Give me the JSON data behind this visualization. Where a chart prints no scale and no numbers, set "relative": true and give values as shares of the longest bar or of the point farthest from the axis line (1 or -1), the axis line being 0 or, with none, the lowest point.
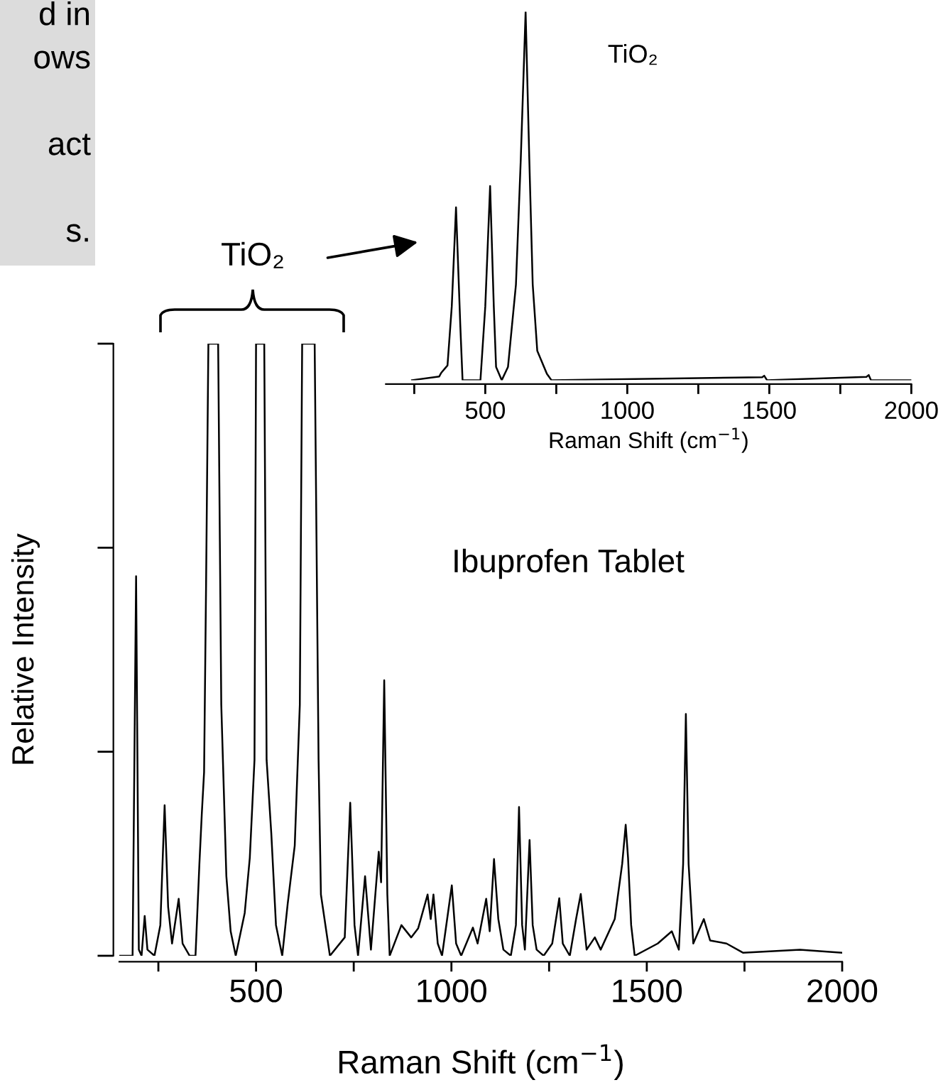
{
  "chart_data": [
    {
      "type": "line",
      "relative": true,
      "xlabel": "Raman Shift (cm$^{−1}$)",
      "ylabel": "Relative Intensity",
      "xlim": [
        150,
        2000
      ],
      "xticks": [
        {
          "value": 250,
          "label": null
        },
        500,
        {
          "value": 750,
          "label": null
        },
        1000,
        {
          "value": 1250,
          "label": null
        },
        1500,
        {
          "value": 1750,
          "label": null
        },
        2000
      ],
      "annotations": [
        "d in\nows\n\nact\n\ns.",
        "TiO₂",
        "Ibuprofen Tablet"
      ],
      "grid": false,
      "legend": false,
      "marker": "none",
      "line_style": "solid",
      "series": [
        {
          "color": "#000000",
          "x": [
            150,
            184,
            193,
            200,
            207,
            215,
            222,
            240,
            255,
            266,
            275,
            285,
            302,
            312,
            330,
            345,
            355,
            361,
            367,
            372,
            378,
            403,
            411,
            424,
            435,
            448,
            471,
            484,
            496,
            500,
            521,
            527,
            539,
            551,
            567,
            581,
            599,
            612,
            618,
            650,
            660,
            666,
            689,
            727,
            741,
            752,
            761,
            779,
            794,
            814,
            820,
            828,
            836,
            842,
            872,
            897,
            915,
            939,
            947,
            954,
            965,
            976,
            1001,
            1012,
            1025,
            1055,
            1067,
            1089,
            1098,
            1109,
            1120,
            1133,
            1152,
            1165,
            1173,
            1181,
            1188,
            1200,
            1208,
            1218,
            1236,
            1258,
            1276,
            1285,
            1303,
            1319,
            1331,
            1346,
            1367,
            1382,
            1418,
            1437,
            1446,
            1452,
            1460,
            1469,
            1528,
            1564,
            1582,
            1593,
            1600,
            1607,
            1619,
            1646,
            1662,
            1704,
            1746,
            1892,
            2000
          ],
          "values": [
            0,
            0,
            0.62,
            0.01,
            0,
            0.065,
            0.01,
            0,
            0.05,
            0.246,
            0.08,
            0.02,
            0.093,
            0.02,
            0,
            0,
            0.15,
            0.23,
            0.3,
            0.6,
            1,
            1,
            0.41,
            0.13,
            0.04,
            0,
            0.07,
            0.16,
            0.32,
            1,
            1,
            0.32,
            0.2,
            0.05,
            0,
            0.085,
            0.18,
            0.41,
            1,
            1,
            0.32,
            0.1,
            0,
            0.03,
            0.25,
            0.05,
            0,
            0.13,
            0.01,
            0.17,
            0.12,
            0.45,
            0.1,
            0,
            0.05,
            0.03,
            0.045,
            0.1,
            0.06,
            0.1,
            0.02,
            0,
            0.115,
            0.02,
            0,
            0.046,
            0.02,
            0.093,
            0.04,
            0.158,
            0.06,
            0.01,
            0,
            0.05,
            0.243,
            0.05,
            0.01,
            0.189,
            0.05,
            0.01,
            0,
            0.02,
            0.094,
            0.02,
            0,
            0.06,
            0.101,
            0.01,
            0.03,
            0.01,
            0.06,
            0.15,
            0.214,
            0.16,
            0.05,
            0,
            0.02,
            0.04,
            0.01,
            0.15,
            0.395,
            0.15,
            0.02,
            0.06,
            0.025,
            0.02,
            0.005,
            0.01,
            0.005
          ]
        }
      ]
    },
    {
      "type": "line",
      "relative": true,
      "xlabel": "Raman Shift (cm$^{−1}$)",
      "xlim": [
        150,
        2000
      ],
      "xticks": [
        {
          "value": 250,
          "label": null
        },
        500,
        {
          "value": 750,
          "label": null
        },
        1000,
        {
          "value": 1250,
          "label": null
        },
        1500,
        {
          "value": 1750,
          "label": null
        },
        2000
      ],
      "annotations": [
        "TiO₂"
      ],
      "grid": false,
      "legend": false,
      "marker": "none",
      "line_style": "solid",
      "series": [
        {
          "color": "#000000",
          "x": [
            242,
            338,
            345,
            367,
            382,
            397,
            412,
            420,
            483,
            500,
            517,
            530,
            538,
            558,
            580,
            608,
            625,
            642,
            655,
            667,
            683,
            717,
            733,
            1475,
            1482,
            1492,
            1842,
            1850,
            1858,
            2000
          ],
          "values": [
            0,
            0.01,
            0.02,
            0.04,
            0.2,
            0.469,
            0.15,
            0,
            0,
            0.2,
            0.527,
            0.2,
            0.036,
            0,
            0.036,
            0.26,
            0.6,
            1,
            0.6,
            0.26,
            0.08,
            0.017,
            0,
            0.008,
            0.012,
            0,
            0.009,
            0.014,
            0,
            0
          ]
        }
      ]
    }
  ]
}
